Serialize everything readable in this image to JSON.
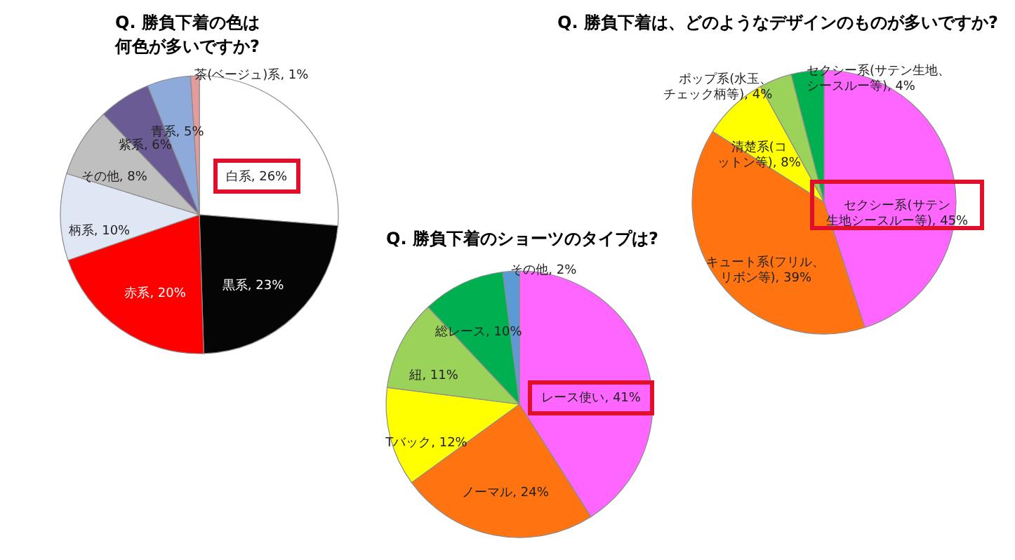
{
  "chart_data": [
    {
      "type": "pie",
      "title": "Q. 勝負下着の色は何色が多いですか?",
      "categories": [
        "白系",
        "黒系",
        "赤系",
        "柄系",
        "その他",
        "紫系",
        "青系",
        "茶(ベージュ)系"
      ],
      "values": [
        26,
        23,
        20,
        10,
        8,
        6,
        5,
        1
      ],
      "value_labels": [
        "26%",
        "23%",
        "20%",
        "10%",
        "8%",
        "6%",
        "5%",
        "1%"
      ],
      "colors": [
        "#ffffff",
        "#050505",
        "#ff0000",
        "#dfe7f5",
        "#bfbfbf",
        "#6b5b95",
        "#8eaadb",
        "#e39b9b"
      ]
    },
    {
      "type": "pie",
      "title": "Q. 勝負下着のショーツのタイプは?",
      "categories": [
        "レース使い",
        "ノーマル",
        "Tバック",
        "紐",
        "総レース",
        "その他"
      ],
      "values": [
        41,
        24,
        12,
        11,
        10,
        2
      ],
      "value_labels": [
        "41%",
        "24%",
        "12%",
        "11%",
        "10%",
        "2%"
      ],
      "colors": [
        "#ff66ff",
        "#ff7410",
        "#ffff00",
        "#9bd35a",
        "#00b050",
        "#5b9bd5"
      ]
    },
    {
      "type": "pie",
      "title": "Q. 勝負下着は、どのようなデザインのものが多いですか?",
      "categories": [
        "セクシー系(サテン生地シースルー等)",
        "キュート系(フリル、リボン等)",
        "清楚系(コットン等)",
        "ポップ系(水玉、チェック柄等)",
        "セクシー系(サテン生地、シースルー等)"
      ],
      "values": [
        45,
        39,
        8,
        4,
        4
      ],
      "value_labels": [
        "45%",
        "39%",
        "8%",
        "4%",
        "4%"
      ],
      "colors": [
        "#ff66ff",
        "#ff7410",
        "#ffff00",
        "#9bd35a",
        "#00b050"
      ]
    }
  ]
}
